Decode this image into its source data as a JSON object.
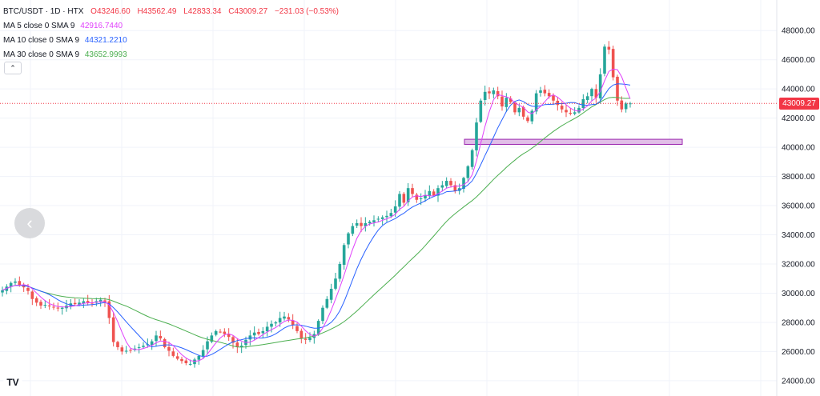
{
  "legend": {
    "symbol": "BTC/USDT · 1D · HTX",
    "open": "O43246.60",
    "high": "H43562.49",
    "low": "L42833.34",
    "close": "C43009.27",
    "change": "−231.03 (−0.53%)",
    "ma5": {
      "label": "MA 5 close 0 SMA 9",
      "value": "42916.7440",
      "color": "#e040fb"
    },
    "ma10": {
      "label": "MA 10 close 0 SMA 9",
      "value": "44321.2210",
      "color": "#2962ff"
    },
    "ma30": {
      "label": "MA 30 close 0 SMA 9",
      "value": "43652.9993",
      "color": "#4caf50"
    }
  },
  "last_price_label": "43009.27",
  "colors": {
    "up": "#26a69a",
    "down": "#ef5350",
    "zone_fill": "#e1bee7",
    "zone_border": "#9c27b0",
    "grid": "#f0f3fa",
    "axis_text": "#131722",
    "price_line": "#f23645"
  },
  "chart_data": {
    "type": "candlestick",
    "ylim": [
      23000,
      50000
    ],
    "y_ticks": [
      "24000.00",
      "26000.00",
      "28000.00",
      "30000.00",
      "32000.00",
      "34000.00",
      "36000.00",
      "38000.00",
      "40000.00",
      "42000.00",
      "44000.00",
      "46000.00",
      "48000.00"
    ],
    "support_zone": [
      40200,
      40550
    ],
    "last_price": 43009.27,
    "close_path": [
      30200,
      30450,
      30700,
      30800,
      30550,
      30400,
      30150,
      29600,
      29350,
      29150,
      29200,
      29100,
      29050,
      28950,
      29000,
      29150,
      29300,
      29250,
      29350,
      29450,
      29350,
      29300,
      29450,
      29550,
      29400,
      28300,
      26650,
      26300,
      26000,
      26050,
      26100,
      26200,
      26300,
      26400,
      26500,
      26700,
      27100,
      26900,
      26300,
      26050,
      25700,
      25500,
      25350,
      25200,
      25150,
      25450,
      25700,
      26100,
      26700,
      27100,
      27400,
      27350,
      27200,
      27000,
      26600,
      26300,
      26400,
      26800,
      27100,
      27300,
      27200,
      27400,
      27700,
      27900,
      28000,
      28300,
      28400,
      28200,
      27800,
      27400,
      26900,
      26800,
      26950,
      27200,
      28100,
      29000,
      29600,
      30300,
      31000,
      32000,
      33300,
      34100,
      34600,
      34800,
      34600,
      34800,
      34900,
      35000,
      35100,
      35200,
      35300,
      35500,
      35950,
      36800,
      36200,
      37200,
      36800,
      36400,
      36500,
      36700,
      37000,
      36700,
      37200,
      37400,
      37700,
      37400,
      37000,
      37200,
      37900,
      38700,
      39800,
      41700,
      43200,
      43800,
      43700,
      43900,
      43500,
      42800,
      43400,
      43100,
      42400,
      42700,
      42100,
      41800,
      42500,
      43700,
      43900,
      43700,
      43500,
      43200,
      42900,
      42600,
      42400,
      42300,
      42400,
      42700,
      43300,
      43500,
      44000,
      43400,
      45000,
      46900,
      46700,
      44800,
      43200,
      42600,
      43000,
      43009
    ]
  }
}
